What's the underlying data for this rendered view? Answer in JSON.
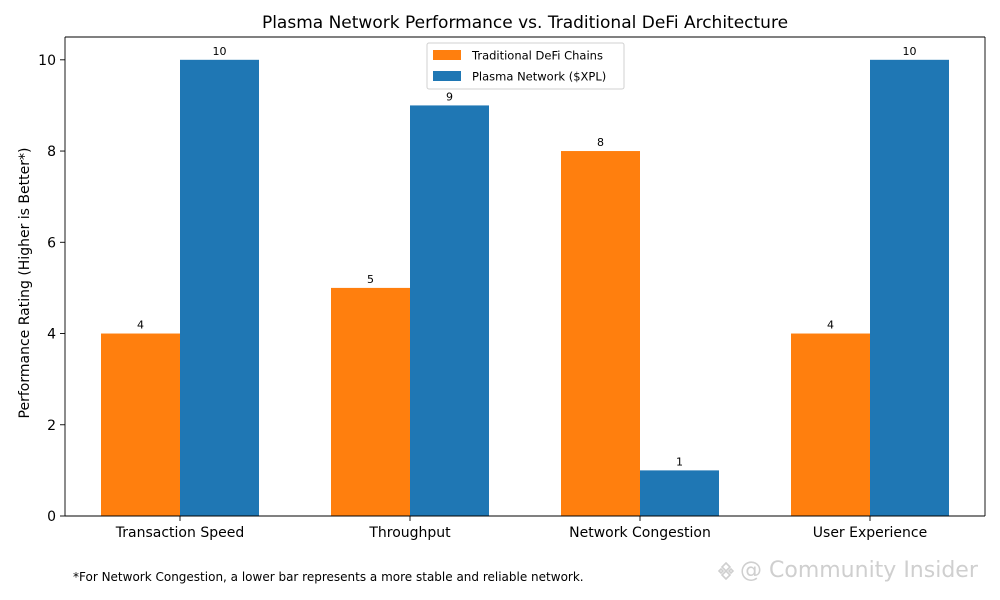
{
  "chart_data": {
    "type": "bar",
    "title": "Plasma Network Performance vs. Traditional DeFi Architecture",
    "xlabel": "",
    "ylabel": "Performance Rating (Higher is Better*)",
    "ylim": [
      0,
      10.5
    ],
    "yticks": [
      0,
      2,
      4,
      6,
      8,
      10
    ],
    "categories": [
      "Transaction Speed",
      "Throughput",
      "Network Congestion",
      "User Experience"
    ],
    "series": [
      {
        "name": "Traditional DeFi Chains",
        "values": [
          4,
          5,
          8,
          4
        ],
        "color": "#ff7f0e"
      },
      {
        "name": "Plasma Network ($XPL)",
        "values": [
          10,
          9,
          1,
          10
        ],
        "color": "#1f77b4"
      }
    ],
    "legend_position": "top-center",
    "grid": false
  },
  "footnote": "*For Network Congestion, a lower bar represents a more stable and reliable network.",
  "watermark": "@ Community Insider"
}
